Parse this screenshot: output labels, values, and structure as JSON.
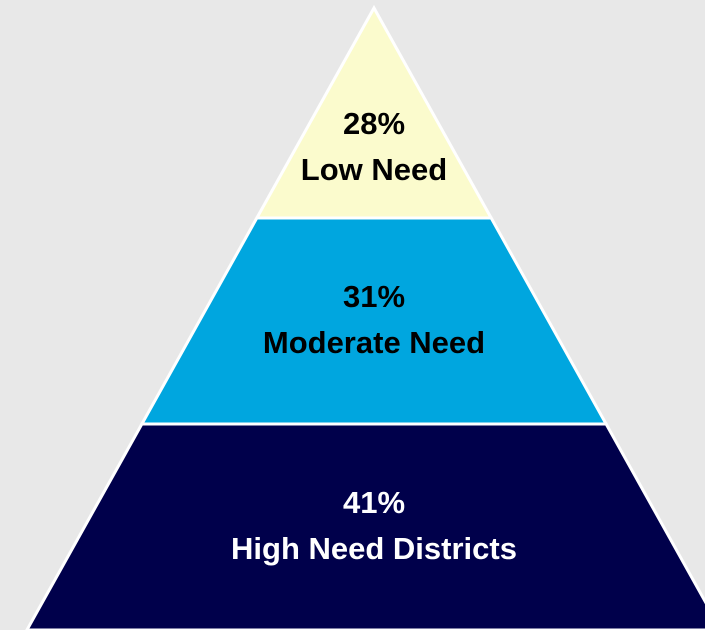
{
  "chart_data": {
    "type": "pyramid",
    "categories": [
      "Low Need",
      "Moderate Need",
      "High Need Districts"
    ],
    "values": [
      28,
      31,
      41
    ],
    "value_labels": [
      "28%",
      "31%",
      "41%"
    ],
    "colors": [
      "#fbfbcd",
      "#00a6df",
      "#00004b"
    ],
    "text_colors": [
      "#000000",
      "#000000",
      "#ffffff"
    ]
  }
}
